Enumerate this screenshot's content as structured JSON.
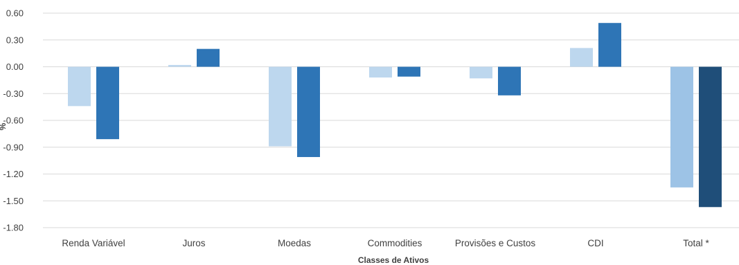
{
  "chart_data": {
    "type": "bar",
    "xlabel": "Classes de Ativos",
    "ylabel": "%",
    "ylim": [
      -1.8,
      0.6
    ],
    "yticks": [
      0.6,
      0.3,
      0.0,
      -0.3,
      -0.6,
      -0.9,
      -1.2,
      -1.5,
      -1.8
    ],
    "ytick_labels": [
      "0.60",
      "0.30",
      "0.00",
      "-0.30",
      "-0.60",
      "-0.90",
      "-1.20",
      "-1.50",
      "-1.80"
    ],
    "grid": true,
    "legend": "none",
    "categories": [
      "Renda Variável",
      "Juros",
      "Moedas",
      "Commodities",
      "Provisões e Custos",
      "CDI",
      "Total *"
    ],
    "series": [
      {
        "values": [
          -0.44,
          0.02,
          -0.89,
          -0.12,
          -0.13,
          0.21,
          -1.35
        ],
        "colors": [
          "#bdd7ee",
          "#bdd7ee",
          "#bdd7ee",
          "#bdd7ee",
          "#bdd7ee",
          "#bdd7ee",
          "#9dc3e6"
        ]
      },
      {
        "values": [
          -0.81,
          0.2,
          -1.01,
          -0.11,
          -0.32,
          0.49,
          -1.57
        ],
        "colors": [
          "#2e75b6",
          "#2e75b6",
          "#2e75b6",
          "#2e75b6",
          "#2e75b6",
          "#2e75b6",
          "#1f4e79"
        ]
      }
    ]
  }
}
